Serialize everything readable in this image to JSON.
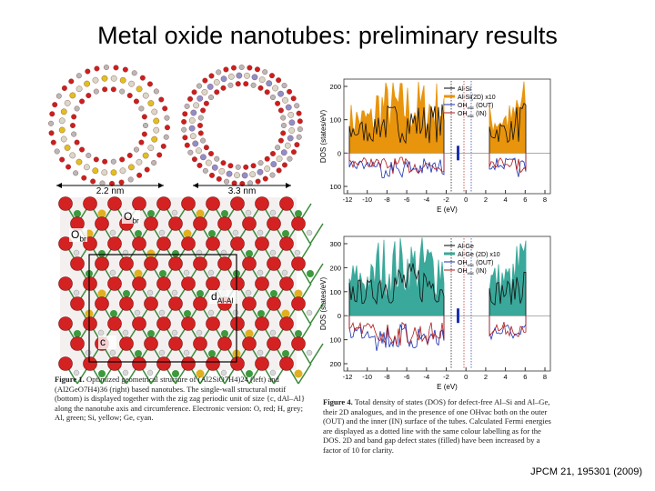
{
  "title": "Metal oxide nanotubes: preliminary results",
  "citation": "JPCM 21, 195301 (2009)",
  "left_figure": {
    "scale_left": "2.2 nm",
    "scale_right": "3.3 nm",
    "atom_labels": [
      {
        "main": "O",
        "sub": "br"
      },
      {
        "main": "O",
        "sub": "br"
      },
      {
        "main": "d",
        "sub": "Al-Al"
      },
      {
        "main": "c",
        "sub": ""
      }
    ],
    "caption_label": "Figure 1.",
    "caption": "Optimized geometrical structure of (Al2SiO7H4)24 (left) and (Al2GeO7H4)36 (right) based nanotubes. The single-wall structural motif (bottom) is displayed together with the zig zag periodic unit of size {c, dAl–Al} along the nanotube axis and circumference. Electronic version: O, red; H, grey; Al, green; Si, yellow; Ge, cyan."
  },
  "right_figure": {
    "top": {
      "y_label": "DOS (states/eV)",
      "x_label": "E (eV)",
      "y_ticks": [
        200,
        100,
        0,
        100
      ],
      "x_ticks": [
        -12,
        -10,
        -8,
        -6,
        -4,
        -2,
        0,
        2,
        4,
        6,
        8
      ],
      "legend": [
        {
          "main": "Al-Si",
          "sub": "",
          "rest": ""
        },
        {
          "main": "Al-Si(2D) x10",
          "sub": "",
          "rest": ""
        },
        {
          "main": "OH",
          "sub": "vac",
          "rest": " (OUT)"
        },
        {
          "main": "OH",
          "sub": "vac",
          "rest": " (IN)"
        }
      ]
    },
    "bottom": {
      "y_label": "DOS (states/eV)",
      "x_label": "E (eV)",
      "y_ticks": [
        300,
        200,
        100,
        0,
        100,
        200
      ],
      "x_ticks": [
        -12,
        -10,
        -8,
        -6,
        -4,
        -2,
        0,
        2,
        4,
        6,
        8
      ],
      "legend": [
        {
          "main": "Al-Ge",
          "sub": "",
          "rest": ""
        },
        {
          "main": "Al-Ge (2D) x10",
          "sub": "",
          "rest": ""
        },
        {
          "main": "OH",
          "sub": "vac",
          "rest": " (OUT)"
        },
        {
          "main": "OH",
          "sub": "vac",
          "rest": " (IN)"
        }
      ]
    },
    "caption_label": "Figure 4.",
    "caption": "Total density of states (DOS) for defect-free Al–Si and Al–Ge, their 2D analogues, and in the presence of one OHvac both on the outer (OUT) and the inner (IN) surface of the tubes. Calculated Fermi energies are displayed as a dotted line with the same colour labelling as for the DOS. 2D and band gap defect states (filled) have been increased by a factor of 10 for clarity."
  }
}
